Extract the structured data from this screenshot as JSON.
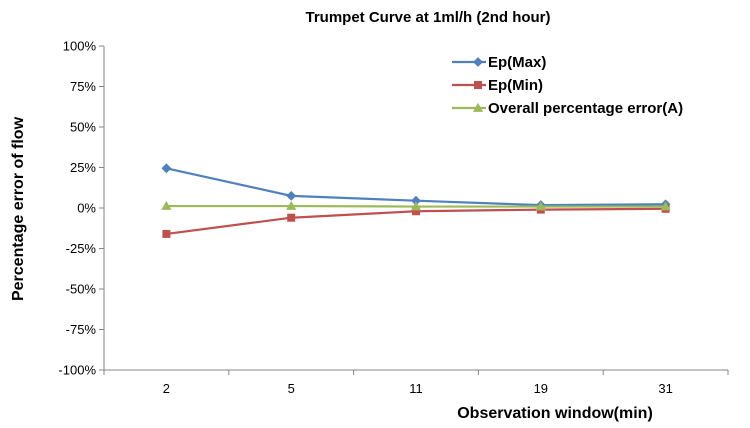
{
  "chart_data": {
    "type": "line",
    "title": "Trumpet Curve at 1ml/h (2nd hour)",
    "xlabel": "Observation window(min)",
    "ylabel": "Percentage error of flow",
    "categories": [
      "2",
      "5",
      "11",
      "19",
      "31"
    ],
    "ylim": [
      -100,
      100
    ],
    "yticks": [
      100,
      75,
      50,
      25,
      0,
      -25,
      -50,
      -75,
      -100
    ],
    "ytick_labels": [
      "100%",
      "75%",
      "50%",
      "25%",
      "0%",
      "-25%",
      "-50%",
      "-75%",
      "-100%"
    ],
    "grid": false,
    "legend_position": "top-right",
    "series": [
      {
        "name": "Ep(Max)",
        "values": [
          24.5,
          7.5,
          4.5,
          1.8,
          2.3
        ],
        "color": "#4F81BD",
        "marker": "diamond"
      },
      {
        "name": "Ep(Min)",
        "values": [
          -16,
          -6,
          -2,
          -1,
          -0.5
        ],
        "color": "#C0504D",
        "marker": "square"
      },
      {
        "name": "Overall percentage error(A)",
        "values": [
          1.2,
          1.2,
          0.9,
          0.9,
          0.9
        ],
        "color": "#9BBB59",
        "marker": "triangle"
      }
    ]
  }
}
